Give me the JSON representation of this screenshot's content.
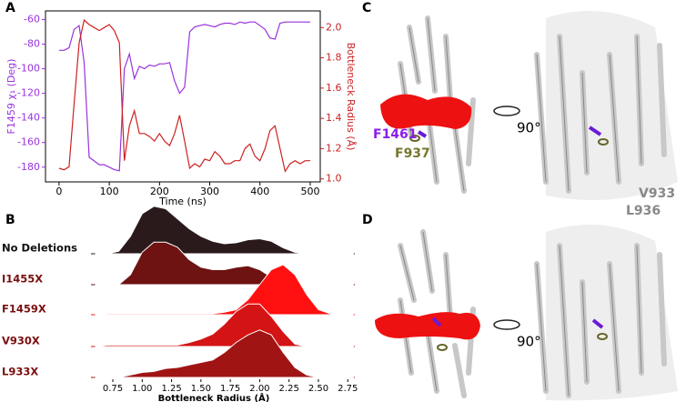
{
  "chart_data": [
    {
      "type": "line",
      "panel_label": "A",
      "xlabel": "Time (ns)",
      "ylabel": "F1459 χ₁ (Deg)",
      "y2label": "Bottleneck Radius (Å)",
      "x": [
        0,
        10,
        20,
        30,
        40,
        50,
        60,
        70,
        80,
        90,
        100,
        110,
        120,
        130,
        140,
        150,
        160,
        170,
        180,
        190,
        200,
        210,
        220,
        230,
        240,
        250,
        260,
        270,
        280,
        290,
        300,
        310,
        320,
        330,
        340,
        350,
        360,
        370,
        380,
        390,
        400,
        410,
        420,
        430,
        440,
        450,
        460,
        470,
        480,
        490,
        500
      ],
      "series": [
        {
          "name": "F1459 χ₁",
          "color": "#9933dd",
          "values": [
            -85,
            -85,
            -83,
            -68,
            -65,
            -95,
            -172,
            -175,
            -178,
            -178,
            -180,
            -182,
            -183,
            -100,
            -88,
            -108,
            -98,
            -100,
            -97,
            -98,
            -96,
            -96,
            -95,
            -110,
            -120,
            -115,
            -70,
            -66,
            -65,
            -64,
            -65,
            -66,
            -64,
            -63,
            -63,
            -64,
            -62,
            -63,
            -62,
            -62,
            -65,
            -68,
            -75,
            -76,
            -63,
            -62,
            -62,
            -62,
            -62,
            -62,
            -62
          ]
        },
        {
          "name": "Bottleneck Radius",
          "color": "#cc2222",
          "axis": "y2",
          "values": [
            1.07,
            1.06,
            1.08,
            1.5,
            1.9,
            2.05,
            2.02,
            2.0,
            1.98,
            2.0,
            2.02,
            1.98,
            1.9,
            1.12,
            1.35,
            1.45,
            1.3,
            1.3,
            1.28,
            1.25,
            1.3,
            1.25,
            1.22,
            1.3,
            1.42,
            1.25,
            1.07,
            1.1,
            1.08,
            1.13,
            1.12,
            1.18,
            1.15,
            1.1,
            1.1,
            1.12,
            1.12,
            1.2,
            1.23,
            1.15,
            1.12,
            1.2,
            1.32,
            1.35,
            1.2,
            1.05,
            1.1,
            1.12,
            1.1,
            1.12,
            1.12
          ]
        }
      ],
      "xlim": [
        -27,
        520
      ],
      "xticks": [
        0,
        100,
        200,
        300,
        400,
        500
      ],
      "ylim": [
        -192,
        -53
      ],
      "yticks": [
        -180,
        -160,
        -140,
        -120,
        -100,
        -80,
        -60
      ],
      "y2lim": [
        0.98,
        2.11
      ],
      "y2ticks": [
        {
          "value": 1.0,
          "label": "1.0"
        },
        1.2,
        1.4,
        1.6,
        1.8,
        {
          "value": 2.0,
          "label": "2.0"
        }
      ]
    },
    {
      "type": "ridgeline",
      "panel_label": "B",
      "xlabel": "Bottleneck Radius (Å)",
      "x": [
        0.6,
        0.7,
        0.8,
        0.9,
        1.0,
        1.1,
        1.2,
        1.3,
        1.4,
        1.5,
        1.6,
        1.7,
        1.8,
        1.9,
        2.0,
        2.1,
        2.2,
        2.3,
        2.4,
        2.5,
        2.6,
        2.7,
        2.8
      ],
      "series": [
        {
          "name": "No Deletions",
          "color": "#2b1a1c",
          "values": [
            0,
            0,
            0.05,
            0.35,
            0.8,
            0.95,
            0.9,
            0.7,
            0.5,
            0.35,
            0.25,
            0.2,
            0.22,
            0.28,
            0.3,
            0.25,
            0.12,
            0.03,
            0,
            0,
            0,
            0,
            0
          ]
        },
        {
          "name": "I1455X",
          "color": "#6e1212",
          "values": [
            0,
            0,
            0,
            0.2,
            0.65,
            0.85,
            0.85,
            0.75,
            0.5,
            0.35,
            0.3,
            0.3,
            0.35,
            0.38,
            0.3,
            0.15,
            0.05,
            0,
            0,
            0,
            0,
            0,
            0
          ]
        },
        {
          "name": "F1459X",
          "color": "#ff1010",
          "values": [
            0,
            0.02,
            0.02,
            0.02,
            0.02,
            0.02,
            0.02,
            0.02,
            0.02,
            0.02,
            0.02,
            0.05,
            0.1,
            0.3,
            0.6,
            0.9,
            1.0,
            0.8,
            0.4,
            0.1,
            0.02,
            0,
            0
          ]
        },
        {
          "name": "V930X",
          "color": "#d41414",
          "values": [
            0,
            0.03,
            0.03,
            0.03,
            0.03,
            0.03,
            0.03,
            0.03,
            0.08,
            0.15,
            0.25,
            0.45,
            0.7,
            0.85,
            0.85,
            0.6,
            0.3,
            0.05,
            0,
            0,
            0,
            0,
            0
          ]
        },
        {
          "name": "L933X",
          "color": "#a01414",
          "values": [
            0,
            0,
            0,
            0.05,
            0.1,
            0.12,
            0.18,
            0.2,
            0.25,
            0.3,
            0.35,
            0.5,
            0.7,
            0.85,
            0.95,
            0.85,
            0.5,
            0.2,
            0.05,
            0,
            0,
            0,
            0
          ]
        }
      ],
      "xlim": [
        0.564,
        2.81
      ],
      "xticks": [
        0.75,
        {
          "value": 1.0,
          "label": "1.00"
        },
        1.25,
        {
          "value": 1.5,
          "label": "1.50"
        },
        1.75,
        {
          "value": 2.0,
          "label": "2.00"
        },
        2.25,
        {
          "value": 2.5,
          "label": "2.50"
        },
        2.75
      ]
    }
  ],
  "structure_panels": [
    {
      "letter": "C",
      "rotation": "90°",
      "labels": [
        "F1461",
        "F937",
        "V933",
        "L936"
      ]
    },
    {
      "letter": "D",
      "rotation": "90°"
    }
  ]
}
